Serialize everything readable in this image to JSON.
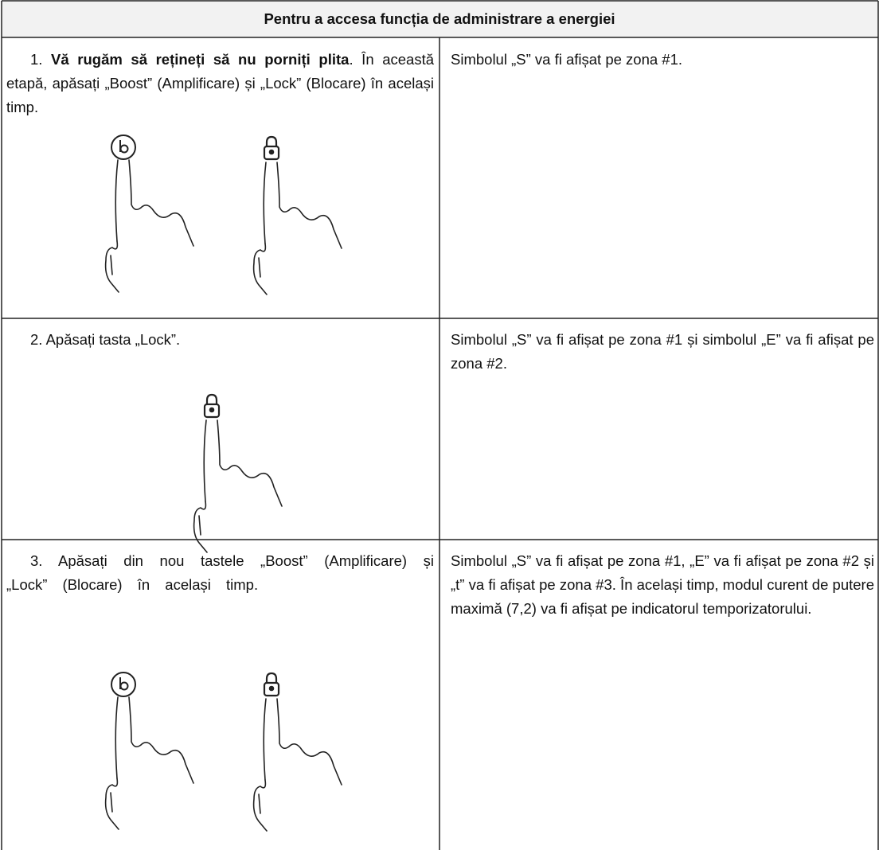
{
  "header": {
    "title": "Pentru a accesa funcția de administrare a energiei"
  },
  "rows": [
    {
      "left": {
        "number": "1.",
        "emphasis": "Vă rugăm să rețineți să nu porniți plita",
        "text": ". În această etapă, apăsați „Boost” (Amplificare) și „Lock” (Blocare) în același timp."
      },
      "right": "Simbolul „S” va fi afișat pe zona #1."
    },
    {
      "left": {
        "number": "2.",
        "text": "Apăsați tasta „Lock”."
      },
      "right": "Simbolul „S” va fi afișat pe zona #1 și simbolul „E” va fi afișat pe zona #2."
    },
    {
      "left": {
        "number": "3.",
        "text": "Apăsați din nou tastele „Boost” (Amplificare) și „Lock” (Blocare) în același timp."
      },
      "right": "Simbolul „S” va fi afișat pe zona #1, „E” va fi afișat pe zona #2 și „t” va fi afișat pe zona #3. În același timp, modul curent de putere maximă (7,2) va fi afișat pe indicatorul temporizatorului."
    }
  ]
}
